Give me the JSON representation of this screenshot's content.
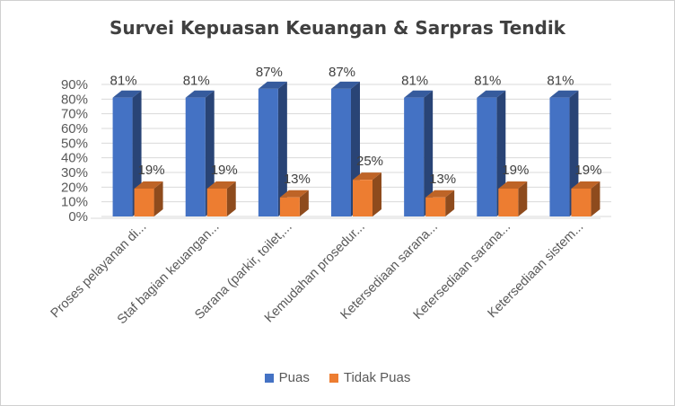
{
  "chart_data": {
    "type": "bar",
    "title": "Survei Kepuasan Keuangan & Sarpras Tendik",
    "xlabel": "",
    "ylabel": "",
    "ylim": [
      0,
      0.9
    ],
    "yticks": [
      "0%",
      "10%",
      "20%",
      "30%",
      "40%",
      "50%",
      "60%",
      "70%",
      "80%",
      "90%"
    ],
    "grid": true,
    "legend_position": "bottom",
    "style": "3d-clustered-column",
    "categories": [
      "Proses pelayanan di...",
      "Staf bagian keuangan...",
      "Sarana (parkir, toilet,...",
      "Kemudahan prosedur...",
      "Ketersediaan sarana...",
      "Ketersediaan sarana...",
      "Ketersediaan sistem..."
    ],
    "series": [
      {
        "name": "Puas",
        "color": "#4472C4",
        "values": [
          0.81,
          0.81,
          0.87,
          0.87,
          0.81,
          0.81,
          0.81
        ],
        "labels": [
          "81%",
          "81%",
          "87%",
          "87%",
          "81%",
          "81%",
          "81%"
        ]
      },
      {
        "name": "Tidak Puas",
        "color": "#ED7D31",
        "values": [
          0.19,
          0.19,
          0.13,
          0.25,
          0.13,
          0.19,
          0.19
        ],
        "labels": [
          "19%",
          "19%",
          "13%",
          "25%",
          "13%",
          "19%",
          "19%"
        ]
      }
    ]
  }
}
